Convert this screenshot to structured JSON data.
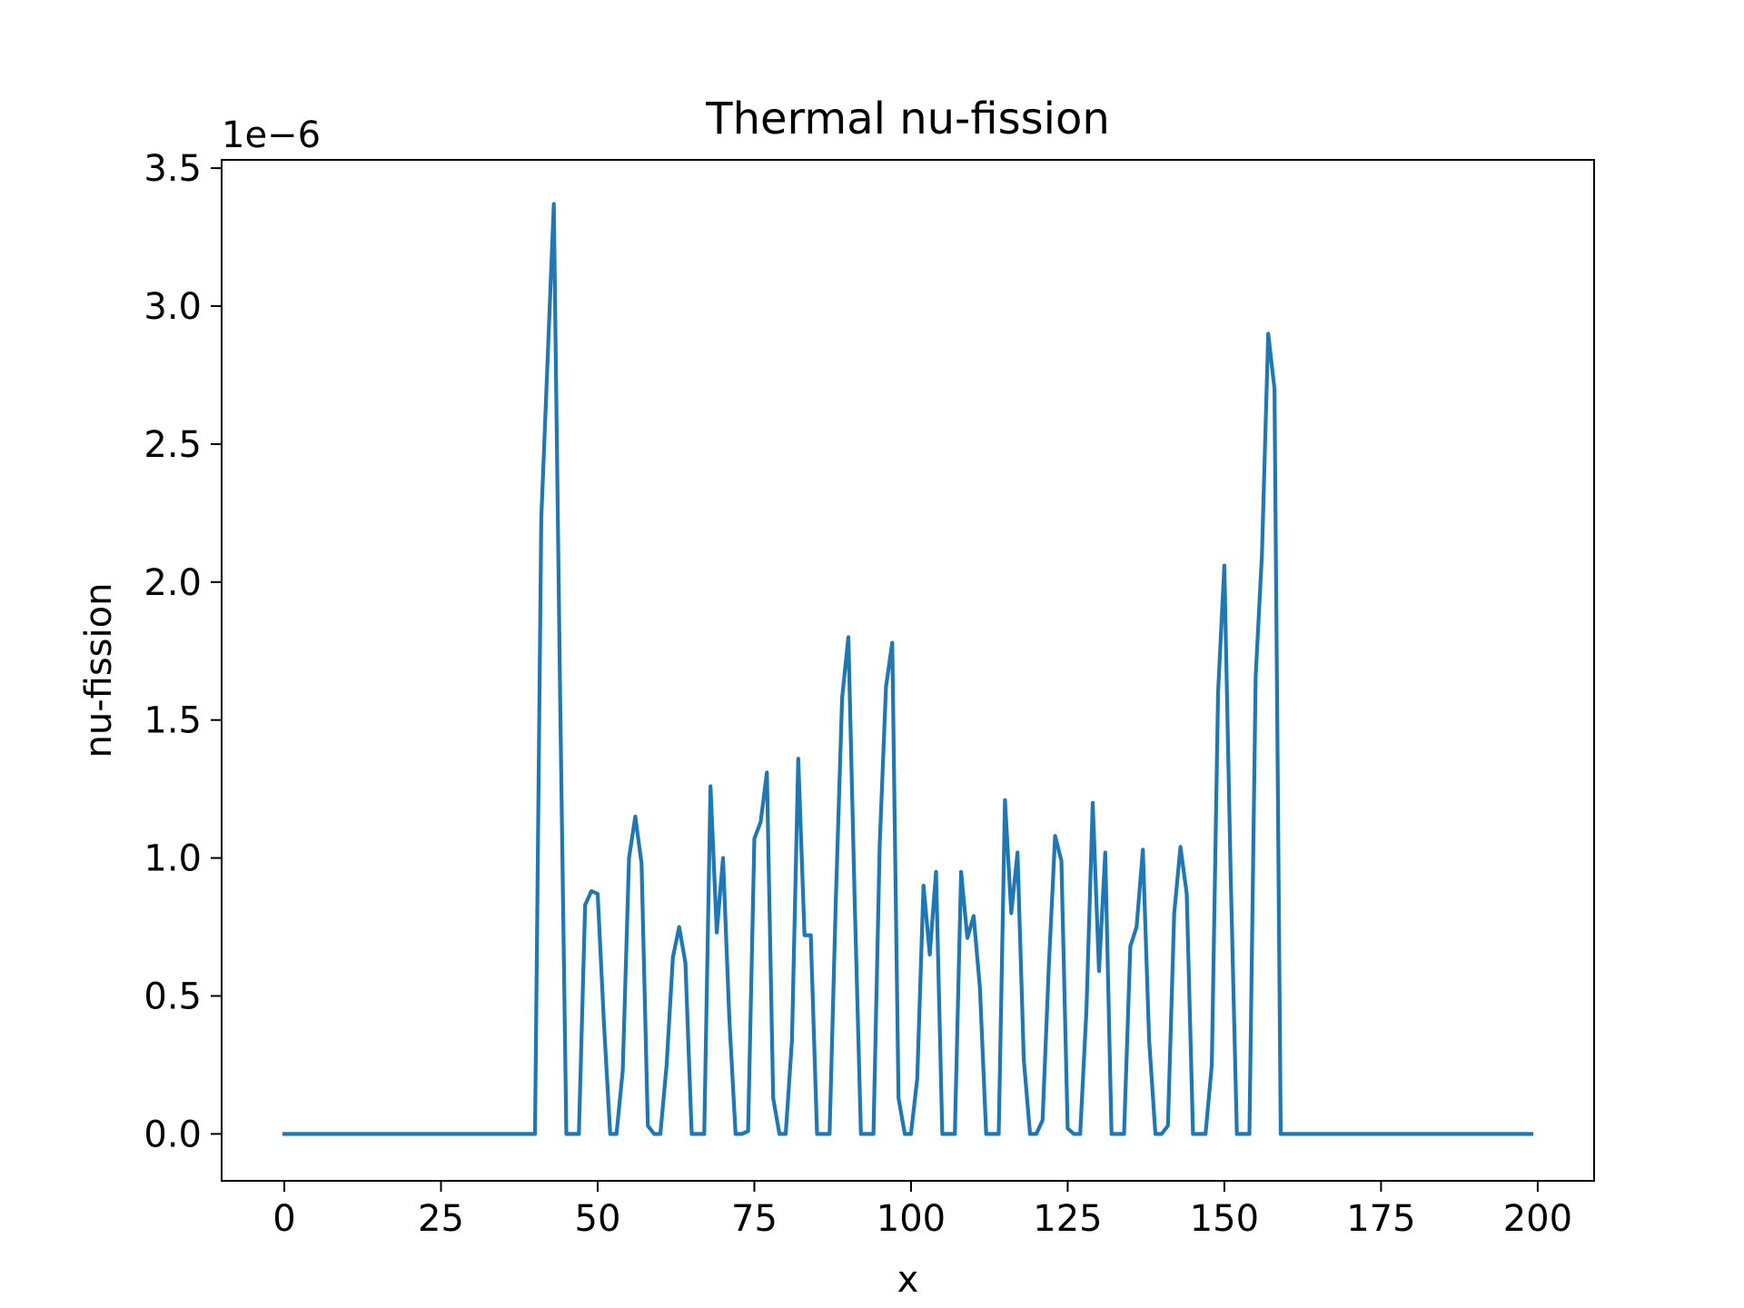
{
  "chart_data": {
    "type": "line",
    "title": "Thermal nu-fission",
    "xlabel": "x",
    "ylabel": "nu-fission",
    "offset_label": "1e−6",
    "xlim": [
      -10,
      209
    ],
    "ylim": [
      -0.17,
      3.53
    ],
    "xticks": [
      0,
      25,
      50,
      75,
      100,
      125,
      150,
      175,
      200
    ],
    "xtick_labels": [
      "0",
      "25",
      "50",
      "75",
      "100",
      "125",
      "150",
      "175",
      "200"
    ],
    "yticks": [
      0.0,
      0.5,
      1.0,
      1.5,
      2.0,
      2.5,
      3.0,
      3.5
    ],
    "ytick_labels": [
      "0.0",
      "0.5",
      "1.0",
      "1.5",
      "2.0",
      "2.5",
      "3.0",
      "3.5"
    ],
    "grid": false,
    "legend": "none",
    "series": [
      {
        "color": "#1f77b4",
        "x": [
          0,
          40,
          41,
          42,
          43,
          44,
          45,
          46,
          47,
          48,
          49,
          50,
          51,
          52,
          53,
          54,
          55,
          56,
          57,
          58,
          59,
          60,
          61,
          62,
          63,
          64,
          65,
          66,
          67,
          68,
          69,
          70,
          71,
          72,
          73,
          74,
          75,
          76,
          77,
          78,
          79,
          80,
          81,
          82,
          83,
          84,
          85,
          86,
          87,
          88,
          89,
          90,
          91,
          92,
          93,
          94,
          95,
          96,
          97,
          98,
          99,
          100,
          101,
          102,
          103,
          104,
          105,
          106,
          107,
          108,
          109,
          110,
          111,
          112,
          113,
          114,
          115,
          116,
          117,
          118,
          119,
          120,
          121,
          122,
          123,
          124,
          125,
          126,
          127,
          128,
          129,
          130,
          131,
          132,
          133,
          134,
          135,
          136,
          137,
          138,
          139,
          140,
          141,
          142,
          143,
          144,
          145,
          146,
          147,
          148,
          149,
          150,
          151,
          152,
          153,
          154,
          155,
          156,
          157,
          158,
          159,
          199
        ],
        "y": [
          0,
          0,
          2.23,
          2.8,
          3.37,
          1.6,
          0,
          0,
          0,
          0.83,
          0.88,
          0.87,
          0.4,
          0,
          0,
          0.23,
          1.0,
          1.15,
          0.98,
          0.03,
          0,
          0,
          0.25,
          0.64,
          0.75,
          0.62,
          0,
          0,
          0,
          1.26,
          0.73,
          1.0,
          0.42,
          0,
          0,
          0.01,
          1.07,
          1.13,
          1.31,
          0.13,
          0,
          0,
          0.34,
          1.36,
          0.72,
          0.72,
          0,
          0,
          0,
          0.85,
          1.58,
          1.8,
          0.85,
          0,
          0,
          0,
          1.05,
          1.62,
          1.78,
          0.13,
          0,
          0,
          0.2,
          0.9,
          0.65,
          0.95,
          0,
          0,
          0,
          0.95,
          0.71,
          0.79,
          0.53,
          0,
          0,
          0,
          1.21,
          0.8,
          1.02,
          0.27,
          0,
          0,
          0.05,
          0.61,
          1.08,
          0.99,
          0.02,
          0,
          0,
          0.45,
          1.2,
          0.59,
          1.02,
          0,
          0,
          0,
          0.68,
          0.75,
          1.03,
          0.34,
          0,
          0,
          0.03,
          0.8,
          1.04,
          0.87,
          0,
          0,
          0,
          0.25,
          1.6,
          2.06,
          0.95,
          0,
          0,
          0,
          1.66,
          2.1,
          2.9,
          2.7,
          0,
          0
        ]
      }
    ]
  }
}
